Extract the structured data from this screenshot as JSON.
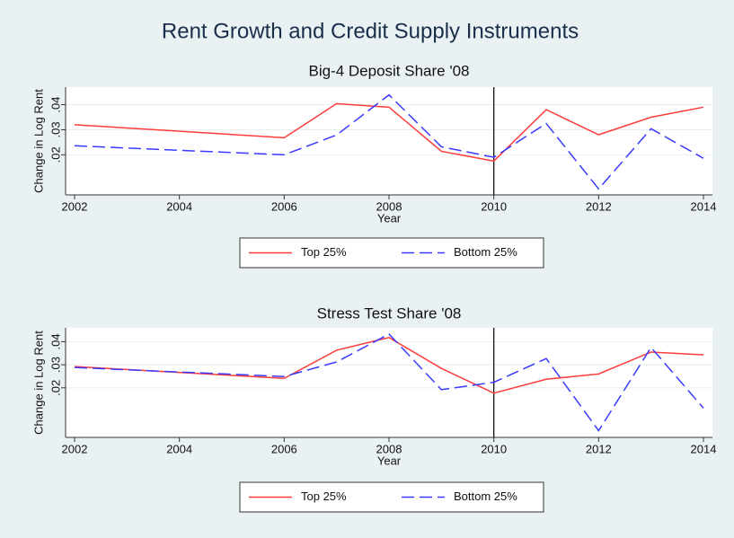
{
  "title": "Rent Growth and Credit Supply Instruments",
  "chart_data": [
    {
      "type": "line",
      "title": "Big-4 Deposit Share '08",
      "xlabel": "Year",
      "ylabel": "Change in Log Rent",
      "x": [
        2002,
        2006,
        2007,
        2008,
        2009,
        2010,
        2011,
        2012,
        2013,
        2014
      ],
      "series": [
        {
          "name": "Top 25%",
          "color": "#ff3b3b",
          "line_style": "solid",
          "values": [
            0.032,
            0.0268,
            0.0404,
            0.039,
            0.0214,
            0.0175,
            0.038,
            0.028,
            0.035,
            0.039
          ]
        },
        {
          "name": "Bottom 25%",
          "color": "#3a3aff",
          "line_style": "dashed",
          "values": [
            0.0236,
            0.02,
            0.0279,
            0.0439,
            0.0232,
            0.019,
            0.0325,
            0.0064,
            0.0304,
            0.0186
          ]
        }
      ],
      "xlim": [
        2002,
        2014
      ],
      "xticks": [
        2002,
        2004,
        2006,
        2008,
        2010,
        2012,
        2014
      ],
      "ylim": [
        0.004,
        0.047
      ],
      "yticks": [
        {
          "value": 0.02,
          "label": ".02"
        },
        {
          "value": 0.03,
          "label": ".03"
        },
        {
          "value": 0.04,
          "label": ".04"
        }
      ],
      "vline": 2010,
      "grid": true
    },
    {
      "type": "line",
      "title": "Stress Test Share '08",
      "xlabel": "Year",
      "ylabel": "Change in Log Rent",
      "x": [
        2002,
        2006,
        2007,
        2008,
        2009,
        2010,
        2011,
        2012,
        2013,
        2014
      ],
      "series": [
        {
          "name": "Top 25%",
          "color": "#ff3b3b",
          "line_style": "solid",
          "values": [
            0.0292,
            0.0241,
            0.0363,
            0.0418,
            0.0284,
            0.0177,
            0.0237,
            0.026,
            0.0355,
            0.0343
          ]
        },
        {
          "name": "Bottom 25%",
          "color": "#3a3aff",
          "line_style": "dashed",
          "values": [
            0.0288,
            0.0249,
            0.0312,
            0.0433,
            0.0192,
            0.0224,
            0.0327,
            0.0014,
            0.0375,
            0.0112
          ]
        }
      ],
      "xlim": [
        2002,
        2014
      ],
      "xticks": [
        2002,
        2004,
        2006,
        2008,
        2010,
        2012,
        2014
      ],
      "ylim": [
        -0.0015,
        0.046
      ],
      "yticks": [
        {
          "value": 0.02,
          "label": ".02"
        },
        {
          "value": 0.03,
          "label": ".03"
        },
        {
          "value": 0.04,
          "label": ".04"
        }
      ],
      "vline": 2010,
      "grid": true
    }
  ]
}
